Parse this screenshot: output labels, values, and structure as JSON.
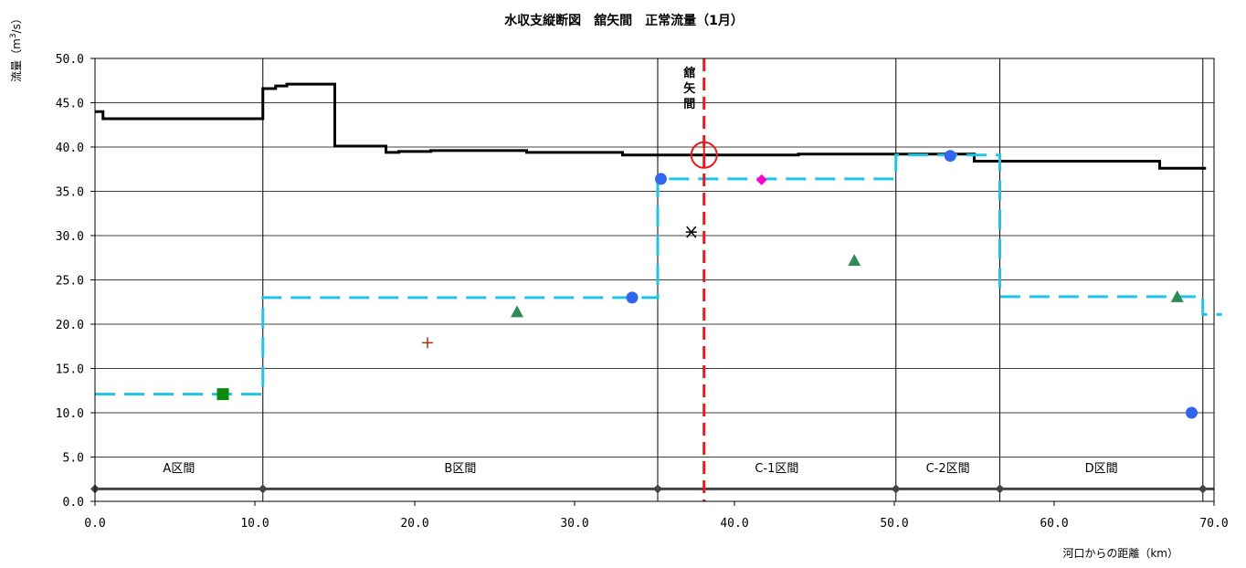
{
  "chart_data": {
    "type": "line",
    "title": "水収支縦断図　舘矢間　正常流量（1月）",
    "xlabel": "河口からの距離（km）",
    "ylabel": "流量（m3/s）",
    "ylabel_parts": {
      "main": "流量（m",
      "sup": "3",
      "tail": "/s）"
    },
    "xlim": [
      0,
      70
    ],
    "ylim": [
      0,
      50
    ],
    "x_ticks": [
      0,
      10,
      20,
      30,
      40,
      50,
      60,
      70
    ],
    "x_tick_labels": [
      "0.0",
      "10.0",
      "20.0",
      "30.0",
      "40.0",
      "50.0",
      "60.0",
      "70.0"
    ],
    "y_ticks": [
      0,
      5,
      10,
      15,
      20,
      25,
      30,
      35,
      40,
      45,
      50
    ],
    "y_tick_labels": [
      "0.0",
      "5.0",
      "10.0",
      "15.0",
      "20.0",
      "25.0",
      "30.0",
      "35.0",
      "40.0",
      "45.0",
      "50.0"
    ],
    "grid": "horizontal",
    "section_bounds": [
      0,
      10.5,
      35.2,
      50.1,
      56.6,
      69.3
    ],
    "section_labels": [
      "A区間",
      "B区間",
      "C-1区間",
      "C-2区間",
      "D区間"
    ],
    "location": {
      "label": "舘矢間",
      "x": 38.1,
      "y": 39.1
    },
    "series": [
      {
        "kind": "step",
        "color": "#000000",
        "x": [
          0,
          0.5,
          0.5,
          10.5,
          10.5,
          11.3,
          11.3,
          12.0,
          12.0,
          15.0,
          15.0,
          18.2,
          18.2,
          19.0,
          19.0,
          21.0,
          21.0,
          27.0,
          27.0,
          33.0,
          33.0,
          44.0,
          44.0,
          55.0,
          55.0,
          66.6,
          66.6,
          69.5
        ],
        "y": [
          44.0,
          44.0,
          43.2,
          43.2,
          46.6,
          46.6,
          46.9,
          46.9,
          47.1,
          47.1,
          40.1,
          40.1,
          39.4,
          39.4,
          39.5,
          39.5,
          39.6,
          39.6,
          39.4,
          39.4,
          39.1,
          39.1,
          39.2,
          39.2,
          38.4,
          38.4,
          37.6,
          37.6
        ]
      },
      {
        "kind": "step-dashed",
        "color": "#21c3e8",
        "x": [
          0,
          10.5,
          10.5,
          35.2,
          35.2,
          50.1,
          50.1,
          56.6,
          56.6,
          69.3,
          69.3,
          70.5
        ],
        "y": [
          12.1,
          12.1,
          23.0,
          23.0,
          36.4,
          36.4,
          39.1,
          39.1,
          23.1,
          23.1,
          21.1,
          21.1
        ]
      }
    ],
    "points": [
      {
        "marker": "square",
        "color": "#0a8a0a",
        "x": 8.0,
        "y": 12.1
      },
      {
        "marker": "plus",
        "color": "#b03010",
        "x": 20.8,
        "y": 17.9
      },
      {
        "marker": "triangle",
        "color": "#2e8b57",
        "x": 26.4,
        "y": 21.3
      },
      {
        "marker": "circle",
        "color": "#3366ee",
        "x": 33.6,
        "y": 23.0
      },
      {
        "marker": "circle",
        "color": "#3366ee",
        "x": 35.4,
        "y": 36.4
      },
      {
        "marker": "asterisk",
        "color": "#000000",
        "x": 37.3,
        "y": 30.4
      },
      {
        "marker": "diamond",
        "color": "#ff00cc",
        "x": 41.7,
        "y": 36.3
      },
      {
        "marker": "triangle",
        "color": "#2e8b57",
        "x": 47.5,
        "y": 27.1
      },
      {
        "marker": "circle",
        "color": "#3366ee",
        "x": 53.5,
        "y": 39.0
      },
      {
        "marker": "triangle",
        "color": "#2e8b57",
        "x": 67.7,
        "y": 23.0
      },
      {
        "marker": "circle",
        "color": "#3366ee",
        "x": 68.6,
        "y": 10.0
      }
    ],
    "colors": {
      "location_line": "#e8191b",
      "baseline": "#444444",
      "grid": "#000000"
    }
  }
}
